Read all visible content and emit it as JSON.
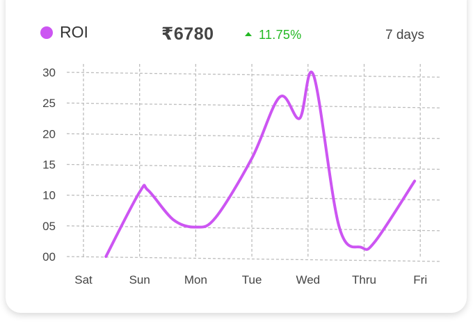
{
  "header": {
    "legend_label": "ROI",
    "amount": "₹6780",
    "change": "11.75%",
    "period": "7 days"
  },
  "colors": {
    "series": "#cc55f2",
    "positive": "#22b822",
    "grid": "#bdbdbd"
  },
  "chart_data": {
    "type": "line",
    "categories": [
      "Sat",
      "Sun",
      "Mon",
      "Tue",
      "Wed",
      "Thru",
      "Fri"
    ],
    "y_tick_labels": [
      "00",
      "05",
      "10",
      "15",
      "20",
      "25",
      "30"
    ],
    "ylim": [
      0,
      30
    ],
    "grid": true,
    "legend": "top-left",
    "series": [
      {
        "name": "ROI",
        "x": [
          0.4,
          1,
          1.15,
          1.6,
          2,
          2.35,
          3,
          3.5,
          3.85,
          4.1,
          4.55,
          4.95,
          5.2,
          5.9
        ],
        "values": [
          0,
          10.5,
          10.8,
          6,
          4.8,
          6.3,
          16,
          26,
          22.5,
          29.5,
          5,
          1.5,
          2.5,
          12.3
        ]
      }
    ]
  }
}
